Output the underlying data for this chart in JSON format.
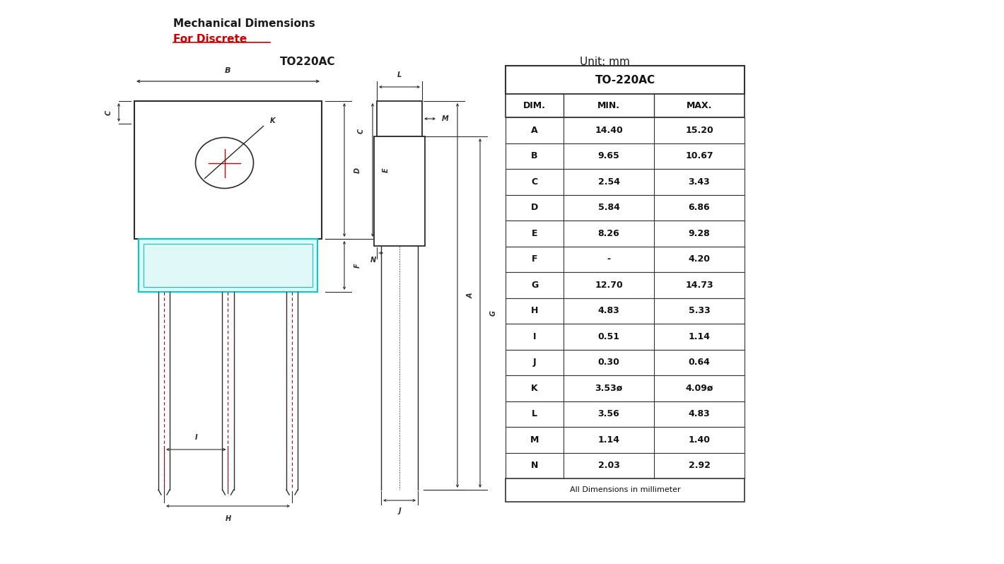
{
  "title1": "Mechanical Dimensions",
  "title2": "For Discrete",
  "package_label": "TO220AC",
  "unit_label": "Unit: mm",
  "table_title": "TO-220AC",
  "table_headers": [
    "DIM.",
    "MIN.",
    "MAX."
  ],
  "table_rows": [
    [
      "A",
      "14.40",
      "15.20"
    ],
    [
      "B",
      "9.65",
      "10.67"
    ],
    [
      "C",
      "2.54",
      "3.43"
    ],
    [
      "D",
      "5.84",
      "6.86"
    ],
    [
      "E",
      "8.26",
      "9.28"
    ],
    [
      "F",
      "-",
      "4.20"
    ],
    [
      "G",
      "12.70",
      "14.73"
    ],
    [
      "H",
      "4.83",
      "5.33"
    ],
    [
      "I",
      "0.51",
      "1.14"
    ],
    [
      "J",
      "0.30",
      "0.64"
    ],
    [
      "K",
      "3.53ø",
      "4.09ø"
    ],
    [
      "L",
      "3.56",
      "4.83"
    ],
    [
      "M",
      "1.14",
      "1.40"
    ],
    [
      "N",
      "2.03",
      "2.92"
    ]
  ],
  "table_footer": "All Dimensions in millimeter",
  "bg_color": "#ffffff",
  "draw_color": "#2c2c2c",
  "cyan_color": "#00cccc",
  "red_color": "#cc0000"
}
